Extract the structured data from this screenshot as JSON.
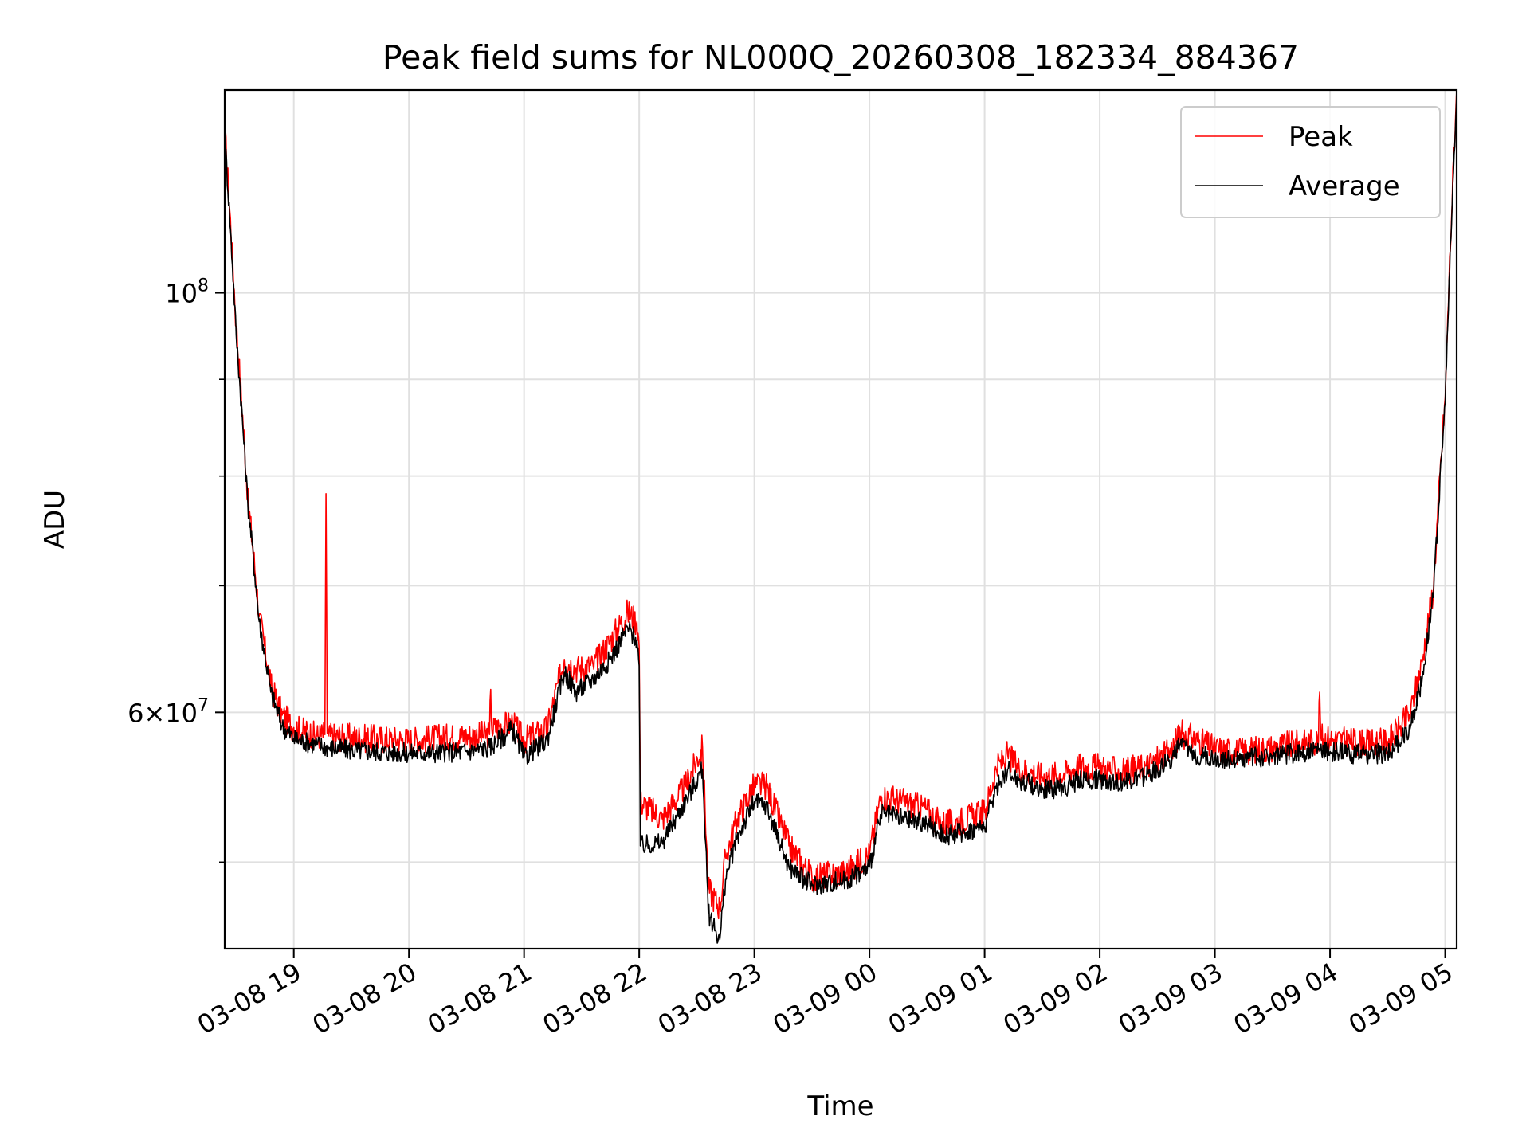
{
  "chart_data": {
    "type": "line",
    "title": "Peak field sums for NL000Q_20260308_182334_884367",
    "xlabel": "Time",
    "ylabel": "ADU",
    "yscale": "log",
    "grid": true,
    "legend_position": "top-right",
    "x_unit": "hours since 03-08 18:00",
    "xlim": [
      18.4,
      29.1
    ],
    "ylim": [
      45000000,
      128000000
    ],
    "x_ticks": [
      {
        "x": 19,
        "label": "03-08 19"
      },
      {
        "x": 20,
        "label": "03-08 20"
      },
      {
        "x": 21,
        "label": "03-08 21"
      },
      {
        "x": 22,
        "label": "03-08 22"
      },
      {
        "x": 23,
        "label": "03-08 23"
      },
      {
        "x": 24,
        "label": "03-09 00"
      },
      {
        "x": 25,
        "label": "03-09 01"
      },
      {
        "x": 26,
        "label": "03-09 02"
      },
      {
        "x": 27,
        "label": "03-09 03"
      },
      {
        "x": 28,
        "label": "03-09 04"
      },
      {
        "x": 29,
        "label": "03-09 05"
      }
    ],
    "y_major_ticks": [
      {
        "value": 60000000,
        "base": "6",
        "exp": "7"
      },
      {
        "value": 100000000,
        "base": "",
        "exp": "8"
      }
    ],
    "y_minor_ticks": [
      50000000,
      70000000,
      80000000,
      90000000
    ],
    "series": [
      {
        "name": "Peak",
        "color": "#ff0000",
        "x": [
          18.4,
          18.5,
          18.6,
          18.7,
          18.8,
          18.9,
          19.0,
          19.2,
          19.27,
          19.28,
          19.29,
          19.3,
          19.5,
          20.0,
          20.5,
          20.7,
          20.71,
          20.72,
          20.9,
          21.0,
          21.2,
          21.35,
          21.45,
          21.6,
          21.75,
          21.9,
          21.98,
          22.0,
          22.01,
          22.2,
          22.4,
          22.55,
          22.6,
          22.7,
          22.75,
          22.85,
          23.0,
          23.1,
          23.3,
          23.5,
          23.8,
          24.0,
          24.1,
          24.3,
          24.5,
          24.6,
          24.7,
          25.0,
          25.1,
          25.2,
          25.3,
          25.4,
          25.5,
          25.7,
          25.8,
          26.0,
          26.2,
          26.4,
          26.6,
          26.7,
          26.8,
          27.0,
          27.2,
          27.5,
          27.9,
          27.91,
          27.92,
          28.0,
          28.3,
          28.5,
          28.6,
          28.7,
          28.8,
          28.9,
          29.0,
          29.1
        ],
        "values": [
          122000000,
          96000000,
          78000000,
          67500000,
          62000000,
          59800000,
          58900000,
          58300000,
          58400000,
          78300000,
          58500000,
          58300000,
          58200000,
          58000000,
          58300000,
          58400000,
          61700000,
          58800000,
          59200000,
          58000000,
          58800000,
          64000000,
          63300000,
          63500000,
          65500000,
          67800000,
          67000000,
          65000000,
          53800000,
          52700000,
          54800000,
          57500000,
          48400000,
          47300000,
          50300000,
          52700000,
          54900000,
          54900000,
          51000000,
          49100000,
          49400000,
          50500000,
          54200000,
          53800000,
          53300000,
          52500000,
          52400000,
          53100000,
          56000000,
          57000000,
          56000000,
          55800000,
          55500000,
          55700000,
          56200000,
          56100000,
          55800000,
          56200000,
          57100000,
          58500000,
          58200000,
          57400000,
          57200000,
          57500000,
          58000000,
          61500000,
          58200000,
          58100000,
          57800000,
          57900000,
          58800000,
          60000000,
          63800000,
          70000000,
          88000000,
          128000000
        ]
      },
      {
        "name": "Average",
        "color": "#000000",
        "x": [
          18.4,
          18.5,
          18.6,
          18.7,
          18.8,
          18.9,
          19.0,
          19.2,
          19.3,
          19.5,
          20.0,
          20.5,
          20.7,
          20.9,
          21.0,
          21.2,
          21.35,
          21.45,
          21.6,
          21.75,
          21.9,
          21.98,
          22.0,
          22.01,
          22.2,
          22.4,
          22.55,
          22.6,
          22.7,
          22.75,
          22.85,
          23.0,
          23.1,
          23.3,
          23.5,
          23.8,
          24.0,
          24.1,
          24.3,
          24.5,
          24.6,
          24.7,
          25.0,
          25.1,
          25.2,
          25.3,
          25.4,
          25.5,
          25.7,
          25.8,
          26.0,
          26.2,
          26.4,
          26.6,
          26.7,
          26.8,
          27.0,
          27.2,
          27.5,
          27.9,
          28.0,
          28.3,
          28.5,
          28.6,
          28.7,
          28.8,
          28.9,
          29.0,
          29.1
        ],
        "values": [
          121000000,
          95000000,
          77500000,
          67000000,
          61500000,
          59000000,
          58100000,
          57700000,
          57500000,
          57300000,
          57100000,
          57200000,
          57500000,
          58800000,
          56800000,
          58000000,
          63000000,
          61500000,
          62500000,
          64000000,
          66500000,
          65500000,
          63500000,
          51000000,
          51200000,
          53800000,
          56000000,
          47000000,
          45500000,
          49000000,
          51500000,
          53800000,
          53600000,
          49700000,
          48600000,
          48900000,
          49700000,
          53000000,
          52700000,
          52400000,
          51800000,
          51700000,
          52200000,
          54700000,
          56000000,
          55200000,
          55000000,
          54600000,
          54800000,
          55200000,
          55300000,
          55100000,
          55500000,
          56500000,
          57700000,
          57100000,
          56700000,
          56700000,
          56900000,
          57300000,
          57200000,
          57000000,
          57100000,
          57800000,
          59000000,
          62500000,
          69500000,
          87500000,
          127000000
        ]
      }
    ]
  }
}
